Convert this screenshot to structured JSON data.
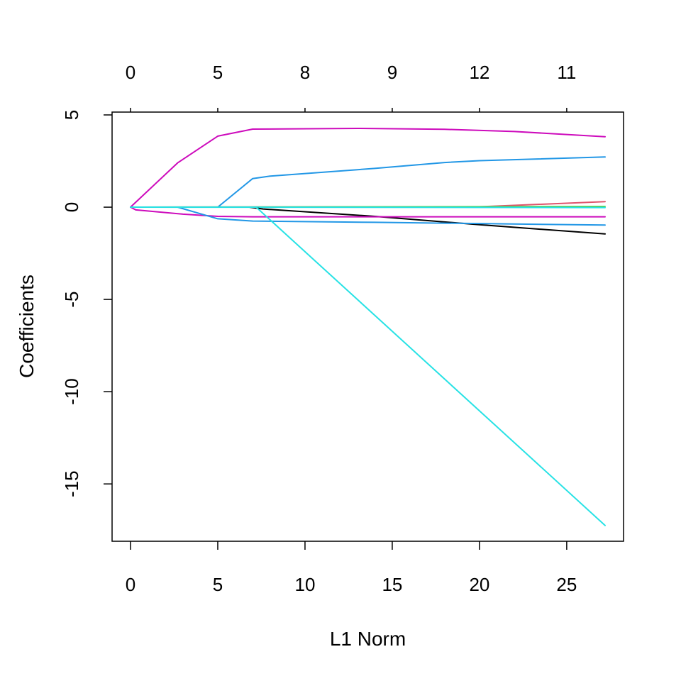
{
  "chart_data": {
    "type": "line",
    "xlabel": "L1 Norm",
    "ylabel": "Coefficients",
    "xlim": [
      0,
      27.2
    ],
    "ylim": [
      -17.3,
      5
    ],
    "x_ticks": [
      "0",
      "5",
      "10",
      "15",
      "20",
      "25"
    ],
    "y_ticks": [
      "5",
      "0",
      "-5",
      "-10",
      "-15"
    ],
    "top_axis": {
      "positions": [
        0,
        5,
        10,
        15,
        20,
        25
      ],
      "labels": [
        "0",
        "5",
        "8",
        "9",
        "12",
        "11"
      ]
    },
    "grid": false,
    "legend": "none",
    "series": [
      {
        "color": "#CD0BBC",
        "points": [
          [
            0,
            0
          ],
          [
            2.7,
            2.4
          ],
          [
            5,
            3.85
          ],
          [
            7,
            4.23
          ],
          [
            13,
            4.27
          ],
          [
            18,
            4.22
          ],
          [
            22,
            4.1
          ],
          [
            27.2,
            3.82
          ]
        ]
      },
      {
        "color": "#2297E6",
        "points": [
          [
            0,
            0
          ],
          [
            5,
            0
          ],
          [
            7,
            1.55
          ],
          [
            8,
            1.68
          ],
          [
            14,
            2.1
          ],
          [
            18,
            2.42
          ],
          [
            20,
            2.52
          ],
          [
            27.2,
            2.72
          ]
        ]
      },
      {
        "color": "#DF536B",
        "points": [
          [
            0,
            0
          ],
          [
            20,
            0.02
          ],
          [
            27.2,
            0.3
          ]
        ]
      },
      {
        "color": "#61D04F",
        "points": [
          [
            0,
            0
          ],
          [
            27.2,
            0.04
          ]
        ]
      },
      {
        "color": "#28E2E5",
        "points": [
          [
            0,
            0
          ],
          [
            27.2,
            -0.02
          ]
        ]
      },
      {
        "color": "#000000",
        "points": [
          [
            0,
            0
          ],
          [
            6.8,
            0
          ],
          [
            7.6,
            -0.1
          ],
          [
            14,
            -0.5
          ],
          [
            20,
            -0.95
          ],
          [
            27.2,
            -1.45
          ]
        ]
      },
      {
        "color": "#CD0BBC",
        "points": [
          [
            0,
            0
          ],
          [
            0.3,
            -0.15
          ],
          [
            3,
            -0.38
          ],
          [
            5,
            -0.5
          ],
          [
            7,
            -0.52
          ],
          [
            15,
            -0.52
          ],
          [
            27.2,
            -0.52
          ]
        ]
      },
      {
        "color": "#2297E6",
        "points": [
          [
            0,
            0
          ],
          [
            2.7,
            0
          ],
          [
            5,
            -0.63
          ],
          [
            7,
            -0.75
          ],
          [
            14,
            -0.82
          ],
          [
            27.2,
            -0.97
          ]
        ]
      },
      {
        "color": "#28E2E5",
        "points": [
          [
            0,
            0
          ],
          [
            7.2,
            0
          ],
          [
            27.2,
            -17.25
          ]
        ]
      }
    ]
  }
}
